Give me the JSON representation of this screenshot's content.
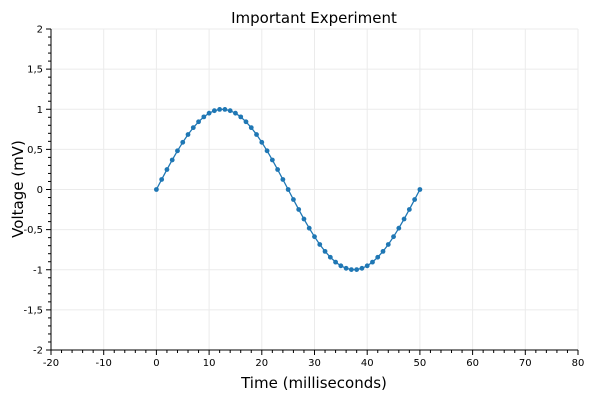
{
  "colors": {
    "series": "#1f77b4",
    "grid": "#ebebeb",
    "axis": "#000000"
  },
  "chart_data": {
    "type": "line",
    "title": "Important Experiment",
    "xlabel": "Time (milliseconds)",
    "ylabel": "Voltage (mV)",
    "xlim": [
      -20,
      80
    ],
    "ylim": [
      -2,
      2
    ],
    "x_ticks": [
      -20,
      -10,
      0,
      10,
      20,
      30,
      40,
      50,
      60,
      70,
      80
    ],
    "x_tick_labels": [
      "-20",
      "-10",
      "0",
      "10",
      "20",
      "30",
      "40",
      "50",
      "60",
      "70",
      "80"
    ],
    "y_ticks": [
      -2,
      -1.5,
      -1,
      -0.5,
      0,
      0.5,
      1,
      1.5,
      2
    ],
    "y_tick_labels": [
      "-2",
      "-1,5",
      "-1",
      "-0,5",
      "0",
      "0,5",
      "1",
      "1,5",
      "2"
    ],
    "grid": true,
    "markers": true,
    "series": [
      {
        "x": [
          0,
          1,
          2,
          3,
          4,
          5,
          6,
          7,
          8,
          9,
          10,
          11,
          12,
          13,
          14,
          15,
          16,
          17,
          18,
          19,
          20,
          21,
          22,
          23,
          24,
          25,
          26,
          27,
          28,
          29,
          30,
          31,
          32,
          33,
          34,
          35,
          36,
          37,
          38,
          39,
          40,
          41,
          42,
          43,
          44,
          45,
          46,
          47,
          48,
          49,
          50
        ],
        "y": [
          0,
          0.125,
          0.249,
          0.368,
          0.482,
          0.588,
          0.685,
          0.771,
          0.844,
          0.905,
          0.951,
          0.982,
          0.998,
          0.998,
          0.982,
          0.951,
          0.905,
          0.844,
          0.771,
          0.685,
          0.588,
          0.482,
          0.368,
          0.249,
          0.125,
          0,
          -0.125,
          -0.249,
          -0.368,
          -0.482,
          -0.588,
          -0.685,
          -0.771,
          -0.844,
          -0.905,
          -0.951,
          -0.982,
          -0.998,
          -0.998,
          -0.982,
          -0.951,
          -0.905,
          -0.844,
          -0.771,
          -0.685,
          -0.588,
          -0.482,
          -0.368,
          -0.249,
          -0.125,
          0
        ]
      }
    ]
  }
}
